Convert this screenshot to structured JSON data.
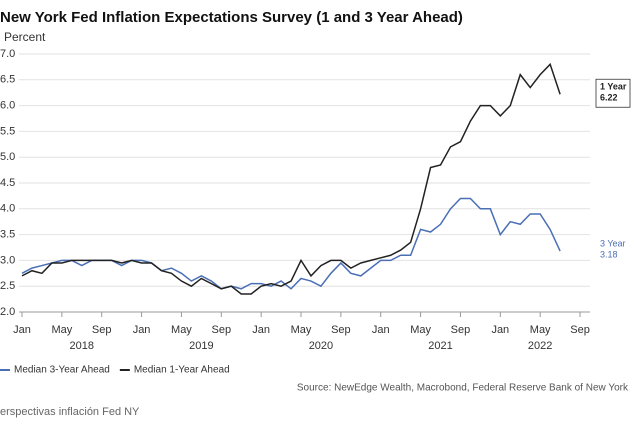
{
  "chart_data": {
    "type": "line",
    "title": "New York Fed Inflation Expectations Survey (1 and 3 Year Ahead)",
    "y_axis_label": "Percent",
    "source": "Source: NewEdge Wealth, Macrobond, Federal Reserve Bank of New York",
    "caption": "erspectivas inflación Fed NY",
    "x": [
      0,
      1,
      2,
      3,
      4,
      5,
      6,
      7,
      8,
      9,
      10,
      11,
      12,
      13,
      14,
      15,
      16,
      17,
      18,
      19,
      20,
      21,
      22,
      23,
      24,
      25,
      26,
      27,
      28,
      29,
      30,
      31,
      32,
      33,
      34,
      35,
      36,
      37,
      38,
      39,
      40,
      41,
      42,
      43,
      44,
      45,
      46,
      47,
      48,
      49,
      50,
      51,
      52,
      53,
      54
    ],
    "xlim": [
      -0.3,
      57
    ],
    "xticks": [
      {
        "value": 0,
        "label": "Jan"
      },
      {
        "value": 4,
        "label": "May"
      },
      {
        "value": 8,
        "label": "Sep"
      },
      {
        "value": 12,
        "label": "Jan"
      },
      {
        "value": 16,
        "label": "May"
      },
      {
        "value": 20,
        "label": "Sep"
      },
      {
        "value": 24,
        "label": "Jan"
      },
      {
        "value": 28,
        "label": "May"
      },
      {
        "value": 32,
        "label": "Sep"
      },
      {
        "value": 36,
        "label": "Jan"
      },
      {
        "value": 40,
        "label": "May"
      },
      {
        "value": 44,
        "label": "Sep"
      },
      {
        "value": 48,
        "label": "Jan"
      },
      {
        "value": 52,
        "label": "May"
      },
      {
        "value": 56,
        "label": "Sep"
      }
    ],
    "year_labels": [
      {
        "value": 6,
        "label": "2018"
      },
      {
        "value": 18,
        "label": "2019"
      },
      {
        "value": 30,
        "label": "2020"
      },
      {
        "value": 42,
        "label": "2021"
      },
      {
        "value": 52,
        "label": "2022"
      }
    ],
    "ylim": [
      2.0,
      7.0
    ],
    "yticks": [
      {
        "value": 2,
        "label": "2.0"
      },
      {
        "value": 2.5,
        "label": "2.5"
      },
      {
        "value": 3,
        "label": "3.0"
      },
      {
        "value": 3.5,
        "label": "3.5"
      },
      {
        "value": 4,
        "label": "4.0"
      },
      {
        "value": 4.5,
        "label": "4.5"
      },
      {
        "value": 5,
        "label": "5.0"
      },
      {
        "value": 5.5,
        "label": "5.5"
      },
      {
        "value": 6,
        "label": "6.0"
      },
      {
        "value": 6.5,
        "label": "6.5"
      },
      {
        "value": 7,
        "label": "7.0"
      }
    ],
    "grid": true,
    "legend": "bottom-left",
    "series": [
      {
        "name": "Median 3-Year Ahead",
        "short_name": "3 Year",
        "color": "#4a6fb5",
        "values": [
          2.75,
          2.85,
          2.9,
          2.95,
          3.0,
          3.0,
          2.9,
          3.0,
          3.0,
          3.0,
          2.9,
          3.0,
          3.0,
          2.95,
          2.8,
          2.85,
          2.75,
          2.6,
          2.7,
          2.6,
          2.45,
          2.5,
          2.45,
          2.55,
          2.55,
          2.5,
          2.6,
          2.45,
          2.65,
          2.6,
          2.5,
          2.75,
          2.95,
          2.75,
          2.7,
          2.85,
          3.0,
          3.0,
          3.1,
          3.1,
          3.6,
          3.55,
          3.7,
          4.0,
          4.2,
          4.2,
          4.0,
          4.0,
          3.5,
          3.75,
          3.7,
          3.9,
          3.9,
          3.6,
          3.18
        ]
      },
      {
        "name": "Median 1-Year Ahead",
        "short_name": "1 Year",
        "color": "#222222",
        "values": [
          2.7,
          2.8,
          2.75,
          2.95,
          2.95,
          3.0,
          3.0,
          3.0,
          3.0,
          3.0,
          2.95,
          3.0,
          2.95,
          2.95,
          2.8,
          2.75,
          2.6,
          2.5,
          2.65,
          2.55,
          2.45,
          2.5,
          2.35,
          2.35,
          2.5,
          2.55,
          2.5,
          2.6,
          3.0,
          2.7,
          2.9,
          3.0,
          3.0,
          2.85,
          2.95,
          3.0,
          3.05,
          3.1,
          3.2,
          3.35,
          4.0,
          4.8,
          4.85,
          5.2,
          5.3,
          5.7,
          6.0,
          6.0,
          5.8,
          6.0,
          6.6,
          6.35,
          6.6,
          6.8,
          6.22
        ]
      }
    ]
  }
}
